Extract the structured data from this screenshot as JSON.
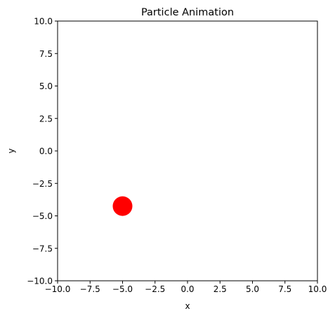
{
  "chart_data": {
    "type": "scatter",
    "title": "Particle Animation",
    "xlabel": "x",
    "ylabel": "y",
    "xlim": [
      -10,
      10
    ],
    "ylim": [
      -10,
      10
    ],
    "grid": false,
    "x_ticks": [
      -10,
      -7.5,
      -5,
      -2.5,
      0,
      2.5,
      5,
      7.5,
      10
    ],
    "y_ticks": [
      -10,
      -7.5,
      -5,
      -2.5,
      0,
      2.5,
      5,
      7.5,
      10
    ],
    "x_tick_labels": [
      "−10.0",
      "−7.5",
      "−5.0",
      "−2.5",
      "0.0",
      "2.5",
      "5.0",
      "7.5",
      "10.0"
    ],
    "y_tick_labels": [
      "−10.0",
      "−7.5",
      "−5.0",
      "−2.5",
      "0.0",
      "2.5",
      "5.0",
      "7.5",
      "10.0"
    ],
    "points": [
      {
        "x": -5.0,
        "y": -4.25,
        "color": "#ff0000"
      }
    ]
  }
}
